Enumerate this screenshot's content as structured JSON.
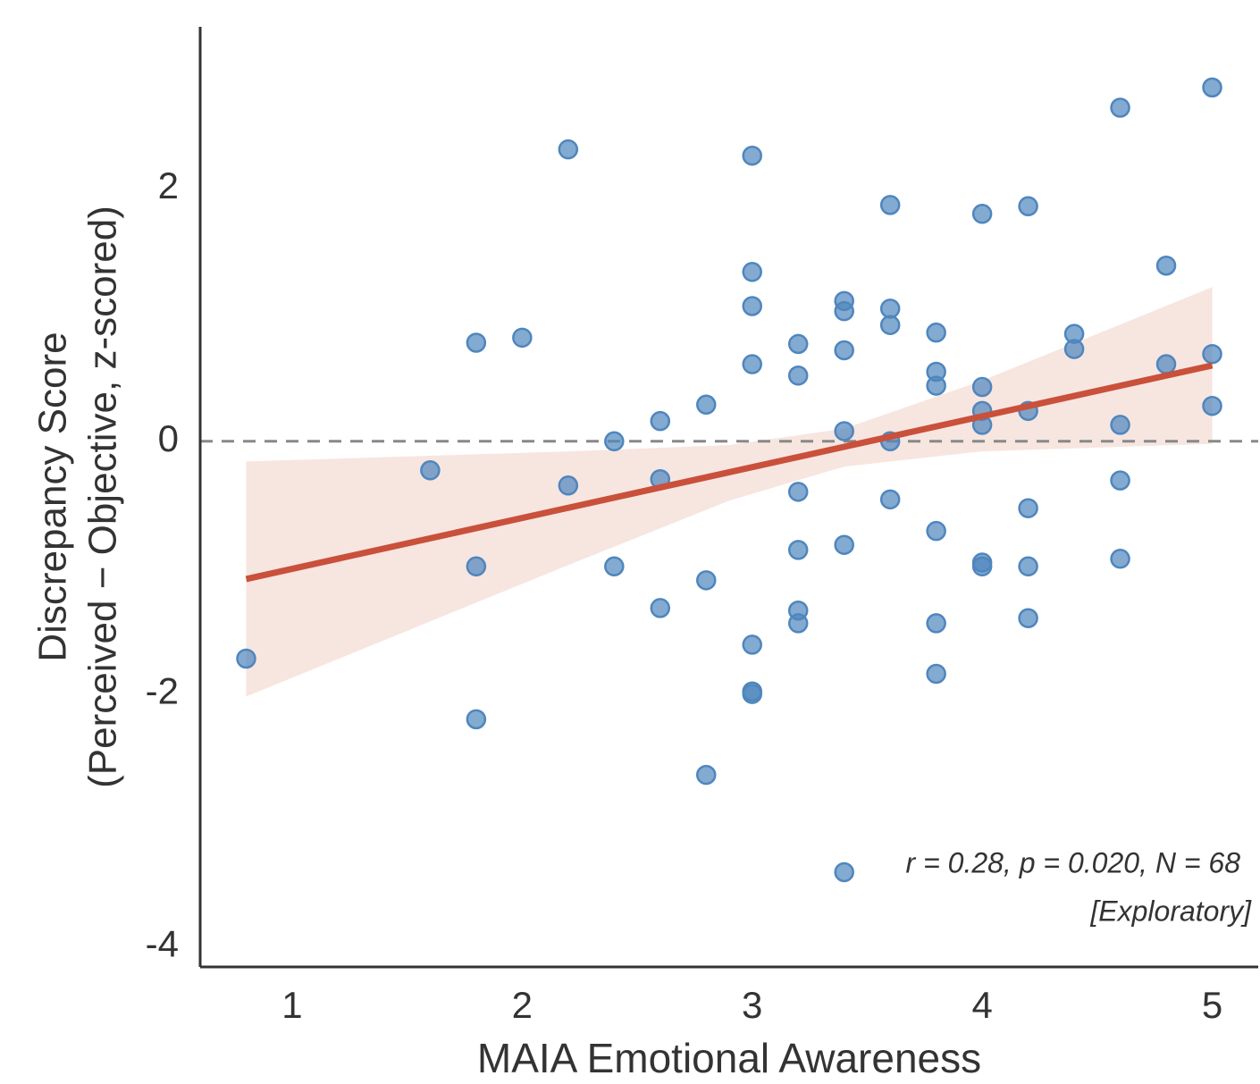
{
  "chart_data": {
    "type": "scatter",
    "xlabel": "MAIA Emotional Awareness",
    "ylabel": [
      "Discrepancy Score",
      "(Perceived − Objective, z-scored)"
    ],
    "annotations": [
      "r = 0.28, p = 0.020, N = 68",
      "[Exploratory]"
    ],
    "color": "#4f86bd",
    "x": [
      0.8,
      1.6,
      1.8,
      1.8,
      1.8,
      2.0,
      2.2,
      2.2,
      2.4,
      2.4,
      2.6,
      2.6,
      2.6,
      2.8,
      2.8,
      2.8,
      3.0,
      3.0,
      3.0,
      3.0,
      3.0,
      3.0,
      3.0,
      3.2,
      3.2,
      3.2,
      3.2,
      3.2,
      3.2,
      3.4,
      3.4,
      3.4,
      3.4,
      3.4,
      3.4,
      3.6,
      3.6,
      3.6,
      3.6,
      3.6,
      3.8,
      3.8,
      3.8,
      3.8,
      3.8,
      3.8,
      4.0,
      4.0,
      4.0,
      4.0,
      4.0,
      4.0,
      4.2,
      4.2,
      4.2,
      4.2,
      4.2,
      4.4,
      4.4,
      4.6,
      4.6,
      4.6,
      4.6,
      4.8,
      4.8,
      5.0,
      5.0,
      5.0
    ],
    "values": [
      -1.72,
      -0.23,
      0.78,
      -0.99,
      -2.2,
      0.82,
      2.31,
      -0.35,
      0.0,
      -0.99,
      0.16,
      -0.3,
      -1.32,
      0.29,
      -1.1,
      -2.64,
      2.26,
      1.34,
      1.07,
      0.61,
      -1.61,
      -1.98,
      -2.0,
      0.77,
      0.52,
      -0.4,
      -0.86,
      -1.34,
      -1.44,
      1.11,
      1.03,
      0.72,
      0.08,
      -0.82,
      -3.41,
      1.87,
      1.05,
      0.92,
      0.0,
      -0.46,
      0.86,
      0.55,
      0.44,
      -0.71,
      -1.44,
      -1.84,
      1.8,
      0.43,
      0.24,
      0.13,
      -0.96,
      -0.99,
      1.86,
      0.24,
      -0.53,
      -0.99,
      -1.4,
      0.85,
      0.73,
      2.64,
      0.13,
      -0.31,
      -0.93,
      1.39,
      0.61,
      2.8,
      0.69,
      0.28
    ],
    "fit": {
      "color": "#c9503a",
      "x": [
        0.8,
        5.0
      ],
      "y": [
        -1.09,
        0.6
      ]
    },
    "band": {
      "color": "#f6e0db",
      "x": [
        0.8,
        1.5,
        2.2,
        2.9,
        3.4,
        4.0,
        4.5,
        5.0
      ],
      "lower": [
        -2.02,
        -1.5,
        -0.98,
        -0.47,
        -0.2,
        -0.08,
        -0.05,
        -0.02
      ],
      "upper": [
        -0.16,
        -0.12,
        -0.08,
        -0.03,
        0.1,
        0.48,
        0.85,
        1.22
      ]
    },
    "hline": 0,
    "xlim": [
      0.6,
      5.2
    ],
    "ylim": [
      -4.16,
      3.28
    ],
    "xticks": [
      1,
      2,
      3,
      4,
      5
    ],
    "yticks": [
      -4,
      -2,
      0,
      2
    ],
    "grid": false
  }
}
